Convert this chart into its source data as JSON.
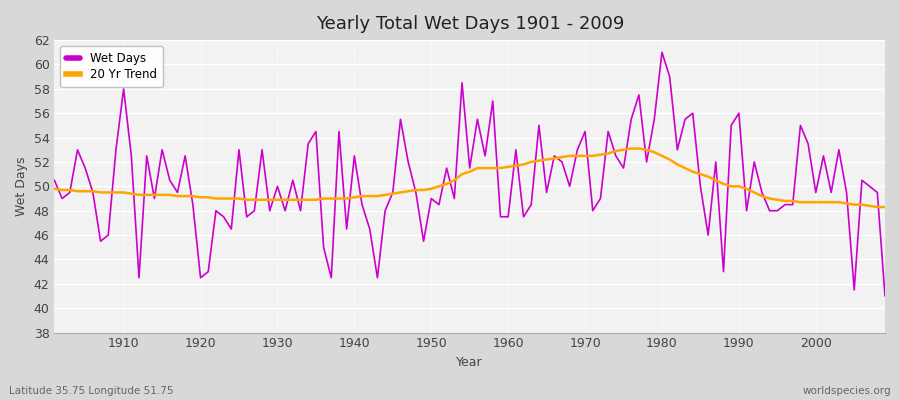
{
  "title": "Yearly Total Wet Days 1901 - 2009",
  "xlabel": "Year",
  "ylabel": "Wet Days",
  "subtitle_left": "Latitude 35.75 Longitude 51.75",
  "subtitle_right": "worldspecies.org",
  "wet_days_color": "#CC00CC",
  "trend_color": "#FFA500",
  "figure_bg_color": "#D8D8D8",
  "plot_bg_color": "#F2F2F2",
  "ylim": [
    38,
    62
  ],
  "yticks": [
    38,
    40,
    42,
    44,
    46,
    48,
    50,
    52,
    54,
    56,
    58,
    60,
    62
  ],
  "xlim": [
    1901,
    2009
  ],
  "xticks": [
    1910,
    1920,
    1930,
    1940,
    1950,
    1960,
    1970,
    1980,
    1990,
    2000
  ],
  "years": [
    1901,
    1902,
    1903,
    1904,
    1905,
    1906,
    1907,
    1908,
    1909,
    1910,
    1911,
    1912,
    1913,
    1914,
    1915,
    1916,
    1917,
    1918,
    1919,
    1920,
    1921,
    1922,
    1923,
    1924,
    1925,
    1926,
    1927,
    1928,
    1929,
    1930,
    1931,
    1932,
    1933,
    1934,
    1935,
    1936,
    1937,
    1938,
    1939,
    1940,
    1941,
    1942,
    1943,
    1944,
    1945,
    1946,
    1947,
    1948,
    1949,
    1950,
    1951,
    1952,
    1953,
    1954,
    1955,
    1956,
    1957,
    1958,
    1959,
    1960,
    1961,
    1962,
    1963,
    1964,
    1965,
    1966,
    1967,
    1968,
    1969,
    1970,
    1971,
    1972,
    1973,
    1974,
    1975,
    1976,
    1977,
    1978,
    1979,
    1980,
    1981,
    1982,
    1983,
    1984,
    1985,
    1986,
    1987,
    1988,
    1989,
    1990,
    1991,
    1992,
    1993,
    1994,
    1995,
    1996,
    1997,
    1998,
    1999,
    2000,
    2001,
    2002,
    2003,
    2004,
    2005,
    2006,
    2007,
    2008,
    2009
  ],
  "wet_days": [
    50.5,
    49.0,
    49.5,
    53.0,
    51.5,
    49.5,
    45.5,
    46.0,
    53.0,
    58.0,
    52.5,
    42.5,
    52.5,
    49.0,
    53.0,
    50.5,
    49.5,
    52.5,
    48.5,
    42.5,
    43.0,
    48.0,
    47.5,
    46.5,
    53.0,
    47.5,
    48.0,
    53.0,
    48.0,
    50.0,
    48.0,
    50.5,
    48.0,
    53.5,
    54.5,
    45.0,
    42.5,
    54.5,
    46.5,
    52.5,
    48.5,
    46.5,
    42.5,
    48.0,
    49.5,
    55.5,
    52.0,
    49.5,
    45.5,
    49.0,
    48.5,
    51.5,
    49.0,
    58.5,
    51.5,
    55.5,
    52.5,
    57.0,
    47.5,
    47.5,
    53.0,
    47.5,
    48.5,
    55.0,
    49.5,
    52.5,
    52.0,
    50.0,
    53.0,
    54.5,
    48.0,
    49.0,
    54.5,
    52.5,
    51.5,
    55.5,
    57.5,
    52.0,
    55.5,
    61.0,
    59.0,
    53.0,
    55.5,
    56.0,
    50.0,
    46.0,
    52.0,
    43.0,
    55.0,
    56.0,
    48.0,
    52.0,
    49.5,
    48.0,
    48.0,
    48.5,
    48.5,
    55.0,
    53.5,
    49.5,
    52.5,
    49.5,
    53.0,
    49.5,
    41.5,
    50.5,
    50.0,
    49.5,
    41.0
  ],
  "trend": [
    49.8,
    49.7,
    49.7,
    49.6,
    49.6,
    49.6,
    49.5,
    49.5,
    49.5,
    49.5,
    49.4,
    49.3,
    49.3,
    49.3,
    49.3,
    49.3,
    49.2,
    49.2,
    49.2,
    49.1,
    49.1,
    49.0,
    49.0,
    49.0,
    49.0,
    48.9,
    48.9,
    48.9,
    48.9,
    48.9,
    48.9,
    48.9,
    48.9,
    48.9,
    48.9,
    49.0,
    49.0,
    49.0,
    49.0,
    49.1,
    49.2,
    49.2,
    49.2,
    49.3,
    49.4,
    49.5,
    49.6,
    49.7,
    49.7,
    49.8,
    50.0,
    50.2,
    50.5,
    51.0,
    51.2,
    51.5,
    51.5,
    51.5,
    51.5,
    51.6,
    51.7,
    51.8,
    52.0,
    52.1,
    52.2,
    52.3,
    52.4,
    52.5,
    52.5,
    52.5,
    52.5,
    52.6,
    52.7,
    52.9,
    53.0,
    53.1,
    53.1,
    53.0,
    52.8,
    52.5,
    52.2,
    51.8,
    51.5,
    51.2,
    51.0,
    50.8,
    50.5,
    50.2,
    50.0,
    50.0,
    49.8,
    49.5,
    49.2,
    49.0,
    48.9,
    48.8,
    48.8,
    48.7,
    48.7,
    48.7,
    48.7,
    48.7,
    48.7,
    48.6,
    48.5,
    48.5,
    48.4,
    48.3,
    48.3
  ]
}
